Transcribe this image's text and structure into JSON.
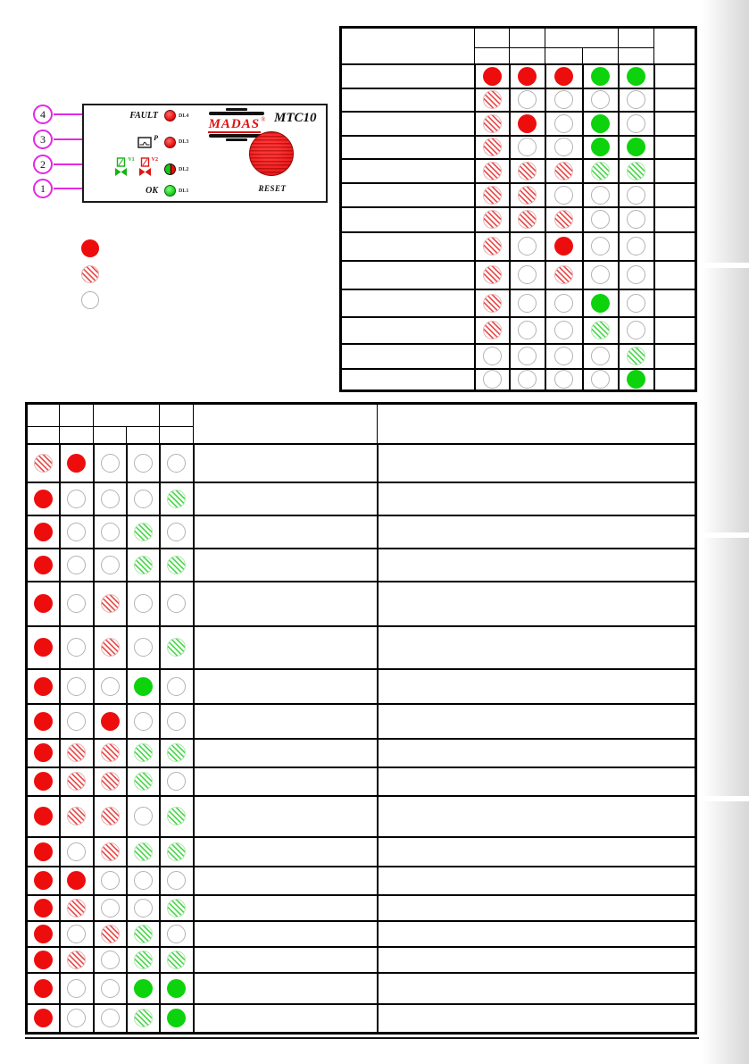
{
  "device_panel": {
    "brand": "MADAS",
    "registered": "®",
    "model": "MTC10",
    "reset_label": "RESET",
    "leds": [
      {
        "name": "DL4",
        "label": "FAULT",
        "color": "red"
      },
      {
        "name": "DL3",
        "label": "P",
        "color": "red"
      },
      {
        "name": "DL2",
        "labels": [
          "V1",
          "V2"
        ],
        "color": "green-red"
      },
      {
        "name": "DL1",
        "label": "OK",
        "color": "green"
      }
    ]
  },
  "callouts": [
    {
      "number": "4"
    },
    {
      "number": "3"
    },
    {
      "number": "2"
    },
    {
      "number": "1"
    }
  ],
  "legend": {
    "states": [
      "R",
      "r",
      "O"
    ]
  },
  "colors": {
    "led_red_on": "#ee0d0d",
    "led_green_on": "#0cd30c",
    "led_off": "#ffffff",
    "hatched_red": "#ea5555",
    "hatched_green": "#55d955",
    "callout_magenta": "#e428e4",
    "logo_red": "#e01010"
  },
  "tables": {
    "top": {
      "led_columns": 5,
      "rows": [
        [
          "R",
          "R",
          "R",
          "G",
          "G"
        ],
        [
          "r",
          "O",
          "O",
          "O",
          "O"
        ],
        [
          "r",
          "R",
          "O",
          "G",
          "O"
        ],
        [
          "r",
          "O",
          "O",
          "G",
          "G"
        ],
        [
          "r",
          "r",
          "r",
          "g",
          "g"
        ],
        [
          "r",
          "r",
          "O",
          "O",
          "O"
        ],
        [
          "r",
          "r",
          "r",
          "O",
          "O"
        ],
        [
          "r",
          "O",
          "R",
          "O",
          "O"
        ],
        [
          "r",
          "O",
          "r",
          "O",
          "O"
        ],
        [
          "r",
          "O",
          "O",
          "G",
          "O"
        ],
        [
          "r",
          "O",
          "O",
          "g",
          "O"
        ],
        [
          "O",
          "O",
          "O",
          "O",
          "g"
        ],
        [
          "O",
          "O",
          "O",
          "O",
          "G"
        ]
      ]
    },
    "bottom": {
      "led_columns": 5,
      "rows": [
        [
          "r",
          "R",
          "O",
          "O",
          "O"
        ],
        [
          "R",
          "O",
          "O",
          "O",
          "g"
        ],
        [
          "R",
          "O",
          "O",
          "g",
          "O"
        ],
        [
          "R",
          "O",
          "O",
          "g",
          "g"
        ],
        [
          "R",
          "O",
          "r",
          "O",
          "O"
        ],
        [
          "R",
          "O",
          "r",
          "O",
          "g"
        ],
        [
          "R",
          "O",
          "O",
          "G",
          "O"
        ],
        [
          "R",
          "O",
          "R",
          "O",
          "O"
        ],
        [
          "R",
          "r",
          "r",
          "g",
          "g"
        ],
        [
          "R",
          "r",
          "r",
          "g",
          "O"
        ],
        [
          "R",
          "r",
          "r",
          "O",
          "g"
        ],
        [
          "R",
          "O",
          "r",
          "g",
          "g"
        ],
        [
          "R",
          "R",
          "O",
          "O",
          "O"
        ],
        [
          "R",
          "r",
          "O",
          "O",
          "g"
        ],
        [
          "R",
          "O",
          "r",
          "g",
          "O"
        ],
        [
          "R",
          "r",
          "O",
          "g",
          "g"
        ],
        [
          "R",
          "O",
          "O",
          "G",
          "G"
        ],
        [
          "R",
          "O",
          "O",
          "g",
          "G"
        ]
      ]
    }
  }
}
